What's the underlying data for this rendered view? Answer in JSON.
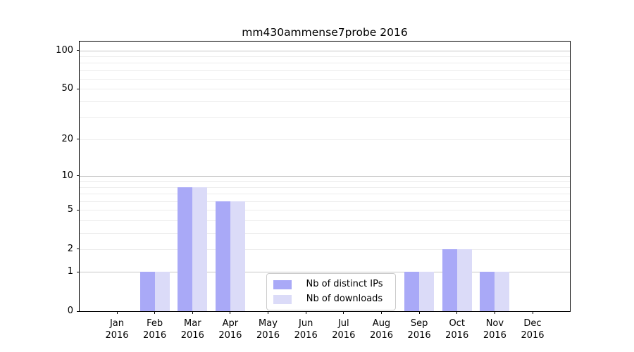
{
  "page": {
    "background": "#ffffff"
  },
  "chart_data": {
    "type": "bar",
    "title": "mm430ammense7probe 2016",
    "categories": [
      "Jan",
      "Feb",
      "Mar",
      "Apr",
      "May",
      "Jun",
      "Jul",
      "Aug",
      "Sep",
      "Oct",
      "Nov",
      "Dec"
    ],
    "x_year": "2016",
    "series": [
      {
        "name": "Nb of distinct IPs",
        "color": "#a9a9f7",
        "values": [
          0,
          1,
          8,
          6,
          0,
          0,
          0,
          0,
          1,
          2,
          1,
          0
        ]
      },
      {
        "name": "Nb of downloads",
        "color": "#dbdbf8",
        "values": [
          0,
          1,
          8,
          6,
          0,
          0,
          0,
          0,
          1,
          2,
          1,
          0
        ]
      }
    ],
    "y_axis": {
      "scale": "log1p",
      "ylim": [
        0,
        117
      ],
      "tick_values": [
        0,
        1,
        2,
        5,
        10,
        20,
        50,
        100
      ],
      "tick_labels": [
        "0",
        "1",
        "2",
        "5",
        "10",
        "20",
        "50",
        "100"
      ],
      "major_gridlines": [
        1,
        10,
        100
      ],
      "minor_gridlines": [
        2,
        3,
        4,
        5,
        6,
        7,
        8,
        9,
        20,
        30,
        40,
        50,
        60,
        70,
        80,
        90
      ]
    },
    "legend_position": "lower center-right",
    "grid": true,
    "colors": {
      "major_grid": "#c6c6c6",
      "minor_grid": "#ececec",
      "frame": "#000000",
      "background": "#ffffff"
    }
  }
}
